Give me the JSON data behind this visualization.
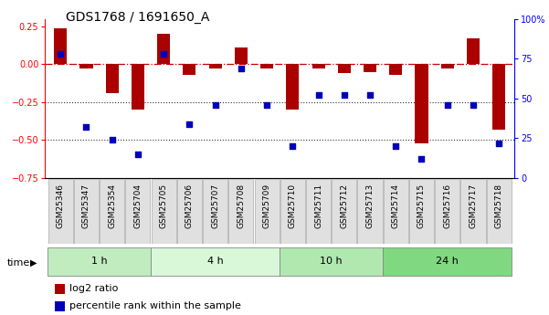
{
  "title": "GDS1768 / 1691650_A",
  "samples": [
    "GSM25346",
    "GSM25347",
    "GSM25354",
    "GSM25704",
    "GSM25705",
    "GSM25706",
    "GSM25707",
    "GSM25708",
    "GSM25709",
    "GSM25710",
    "GSM25711",
    "GSM25712",
    "GSM25713",
    "GSM25714",
    "GSM25715",
    "GSM25716",
    "GSM25717",
    "GSM25718"
  ],
  "log2_ratio": [
    0.24,
    -0.03,
    -0.19,
    -0.3,
    0.2,
    -0.07,
    -0.03,
    0.11,
    -0.03,
    -0.3,
    -0.03,
    -0.06,
    -0.05,
    -0.07,
    -0.52,
    -0.03,
    0.17,
    -0.43
  ],
  "percentile_rank": [
    78,
    32,
    24,
    15,
    78,
    34,
    46,
    69,
    46,
    20,
    52,
    52,
    52,
    20,
    12,
    46,
    46,
    22
  ],
  "groups": [
    {
      "label": "1 h",
      "start": 0,
      "end": 4,
      "color": "#c0ecc0"
    },
    {
      "label": "4 h",
      "start": 4,
      "end": 9,
      "color": "#d8f8d8"
    },
    {
      "label": "10 h",
      "start": 9,
      "end": 13,
      "color": "#b0e8b0"
    },
    {
      "label": "24 h",
      "start": 13,
      "end": 18,
      "color": "#80d880"
    }
  ],
  "ylim_left": [
    -0.75,
    0.3
  ],
  "ylim_right": [
    0,
    100
  ],
  "bar_color": "#aa0000",
  "dot_color": "#0000bb",
  "hline_color": "#cc0000",
  "dotted_color": "#333333",
  "bg_color": "#ffffff",
  "title_fontsize": 10,
  "tick_fontsize": 7,
  "label_fontsize": 8,
  "bar_width": 0.5
}
